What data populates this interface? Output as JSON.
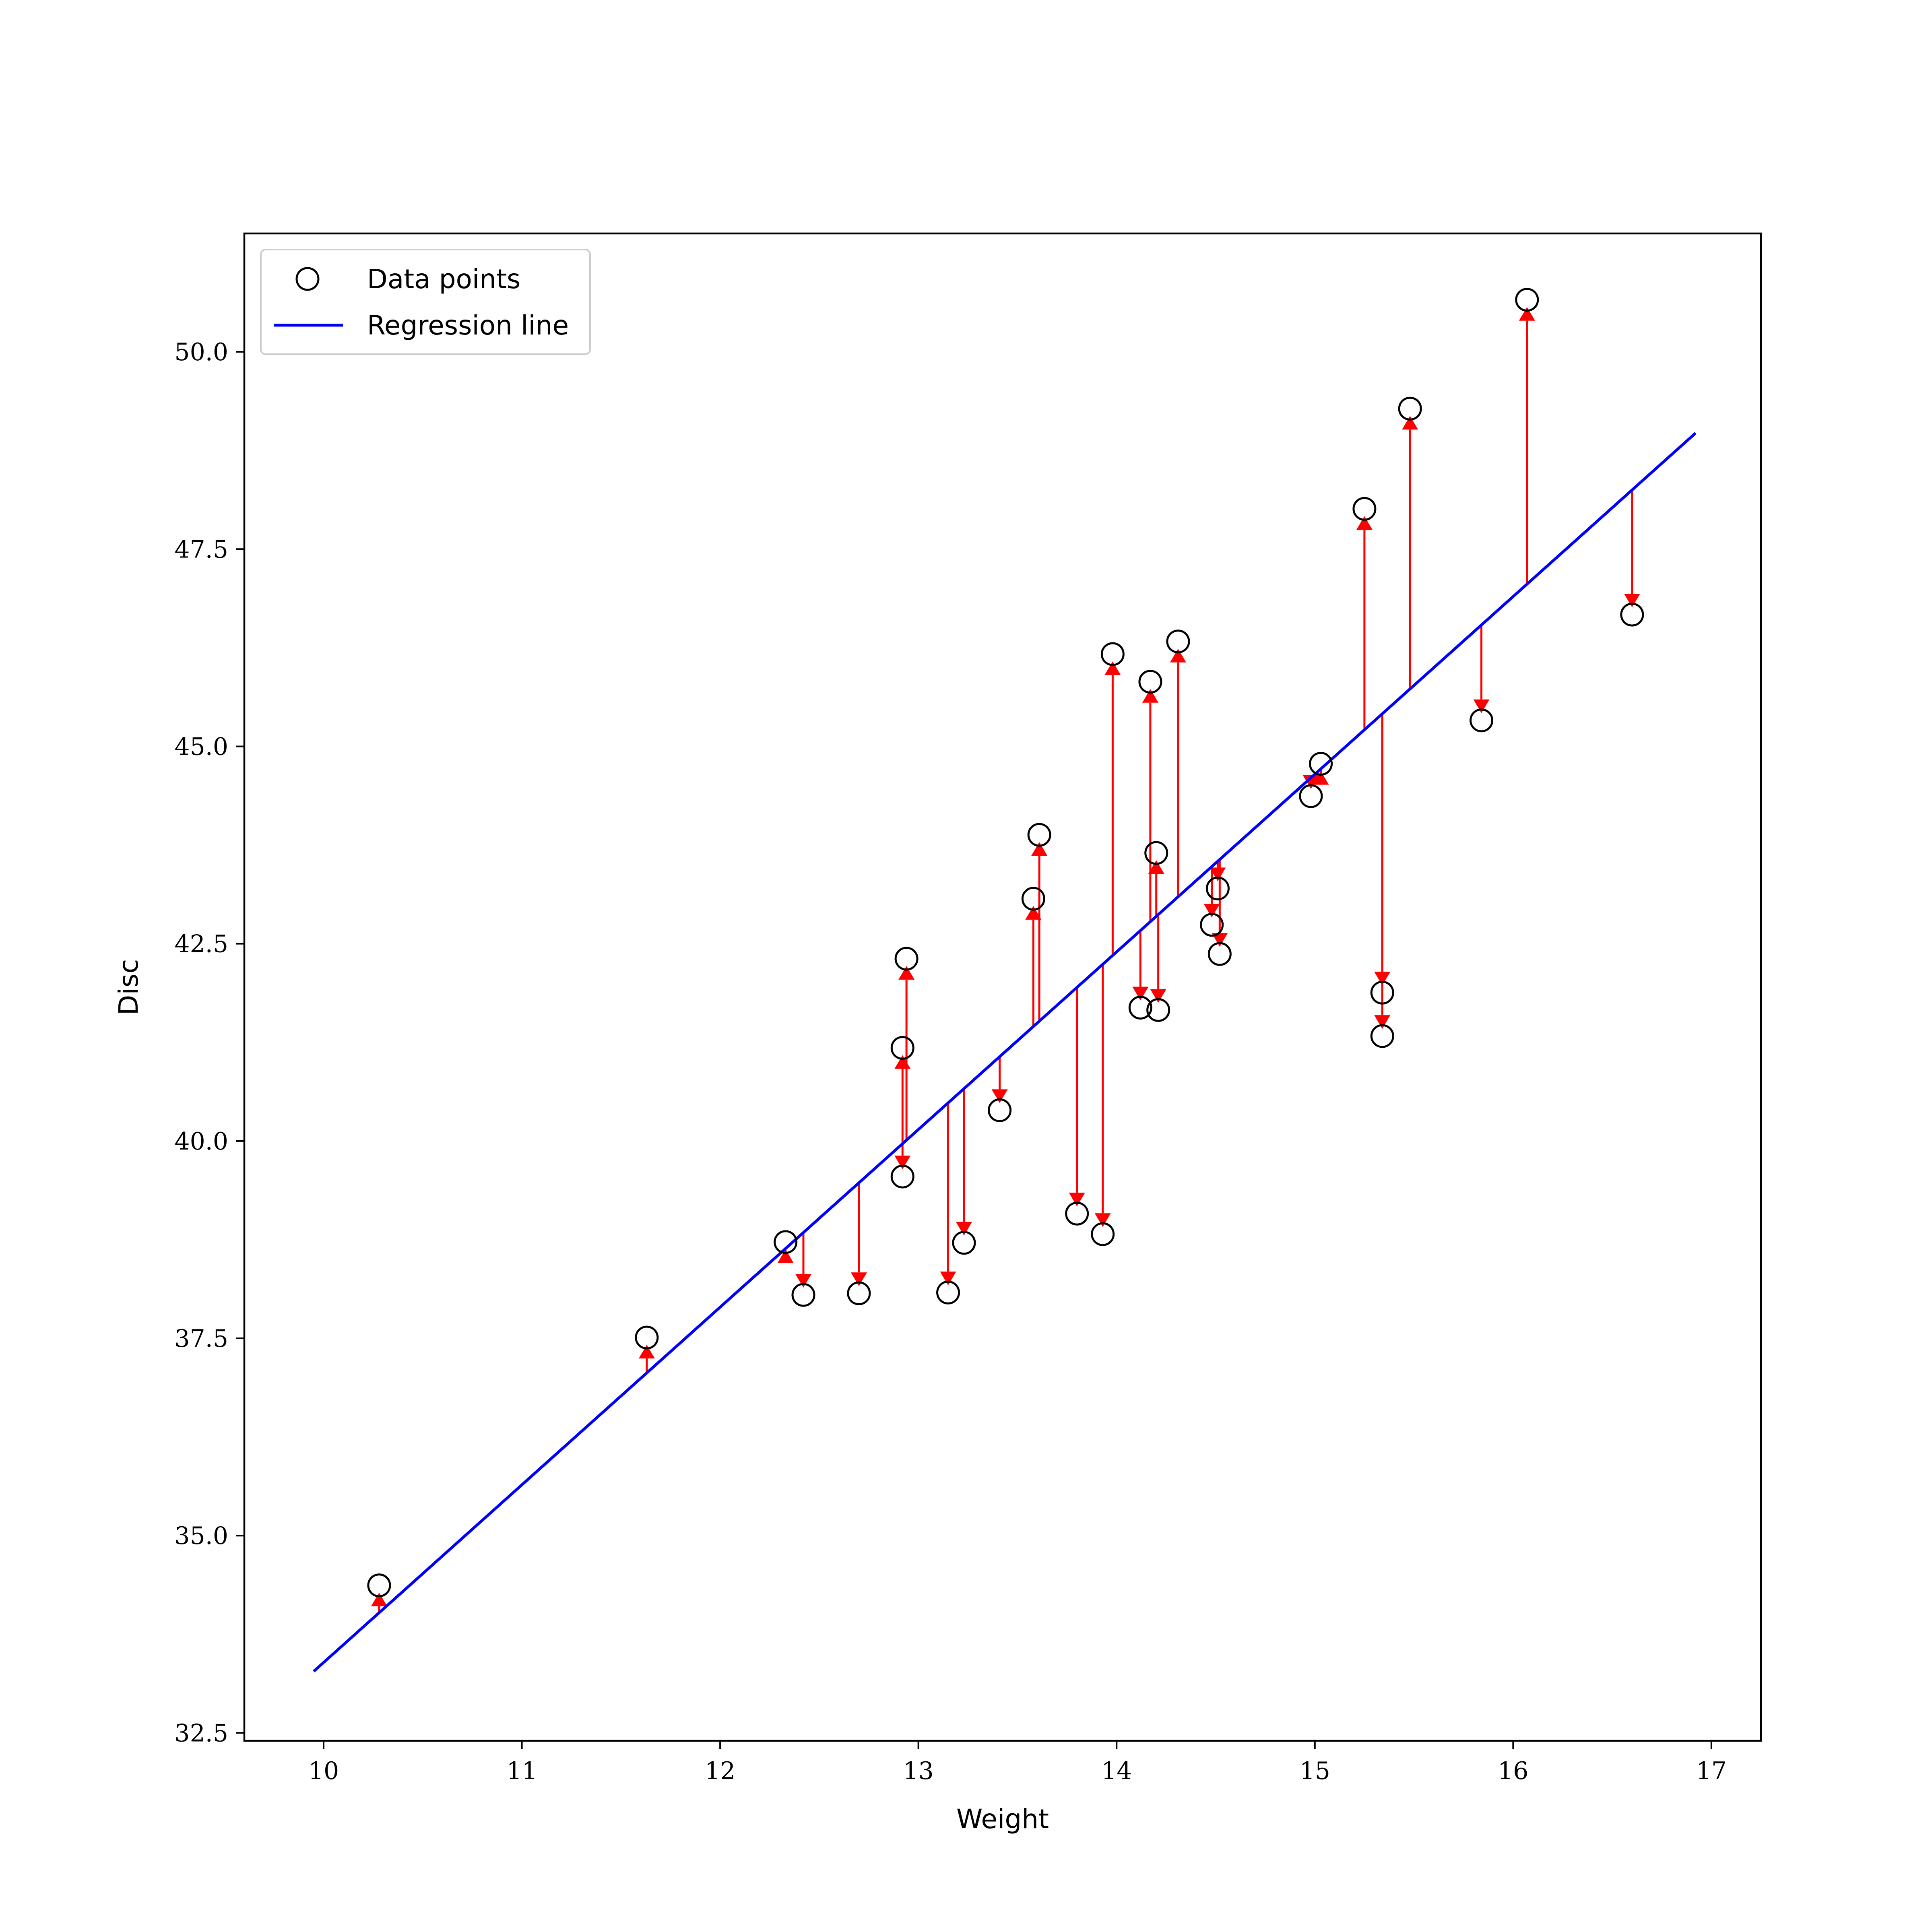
{
  "chart_data": {
    "type": "scatter",
    "xlabel": "Weight",
    "ylabel": "Disc",
    "xlim": [
      9.6,
      17.25
    ],
    "ylim": [
      32.4,
      51.5
    ],
    "xticks": [
      10,
      11,
      12,
      13,
      14,
      15,
      16,
      17
    ],
    "yticks": [
      32.5,
      35.0,
      37.5,
      40.0,
      42.5,
      45.0,
      47.5,
      50.0
    ],
    "ytick_labels": [
      "32.5",
      "35.0",
      "37.5",
      "40.0",
      "42.5",
      "45.0",
      "47.5",
      "50.0"
    ],
    "legend": {
      "position": "top-left",
      "entries": [
        {
          "label": "Data points",
          "marker": "open-circle",
          "color": "#000000"
        },
        {
          "label": "Regression line",
          "marker": "line",
          "color": "#0000ff"
        }
      ]
    },
    "regression_line": {
      "x": [
        9.95,
        16.92
      ],
      "y": [
        33.28,
        48.97
      ],
      "color": "#0000ff"
    },
    "residual_color": "#ff0000",
    "points": [
      {
        "x": 10.28,
        "y": 34.37
      },
      {
        "x": 11.63,
        "y": 37.51
      },
      {
        "x": 12.33,
        "y": 38.72
      },
      {
        "x": 12.42,
        "y": 38.05
      },
      {
        "x": 12.7,
        "y": 38.07
      },
      {
        "x": 12.92,
        "y": 41.18
      },
      {
        "x": 12.92,
        "y": 39.55
      },
      {
        "x": 12.94,
        "y": 42.31
      },
      {
        "x": 13.15,
        "y": 38.08
      },
      {
        "x": 13.23,
        "y": 38.71
      },
      {
        "x": 13.41,
        "y": 40.39
      },
      {
        "x": 13.58,
        "y": 43.07
      },
      {
        "x": 13.61,
        "y": 43.88
      },
      {
        "x": 13.8,
        "y": 39.08
      },
      {
        "x": 13.93,
        "y": 38.82
      },
      {
        "x": 13.98,
        "y": 46.17
      },
      {
        "x": 14.12,
        "y": 41.69
      },
      {
        "x": 14.17,
        "y": 45.82
      },
      {
        "x": 14.2,
        "y": 43.65
      },
      {
        "x": 14.21,
        "y": 41.66
      },
      {
        "x": 14.31,
        "y": 46.33
      },
      {
        "x": 14.48,
        "y": 42.74
      },
      {
        "x": 14.51,
        "y": 43.2
      },
      {
        "x": 14.52,
        "y": 42.37
      },
      {
        "x": 14.98,
        "y": 44.37
      },
      {
        "x": 15.03,
        "y": 44.78
      },
      {
        "x": 15.25,
        "y": 48.01
      },
      {
        "x": 15.34,
        "y": 41.88
      },
      {
        "x": 15.34,
        "y": 41.33
      },
      {
        "x": 15.48,
        "y": 49.28
      },
      {
        "x": 15.84,
        "y": 45.33
      },
      {
        "x": 16.07,
        "y": 50.66
      },
      {
        "x": 16.6,
        "y": 46.67
      }
    ]
  }
}
